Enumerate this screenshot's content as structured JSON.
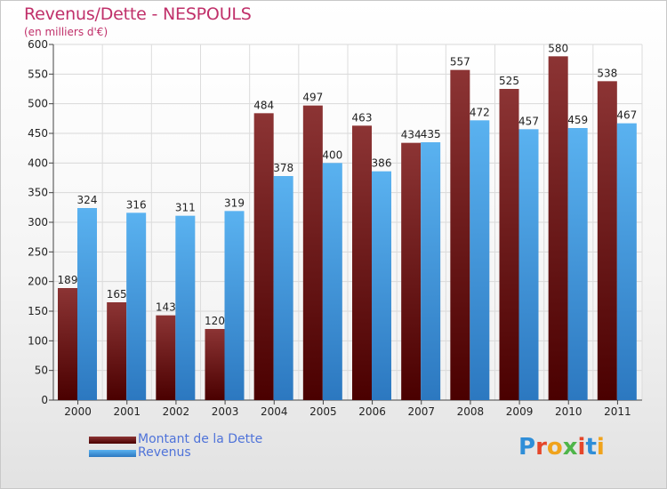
{
  "title": "Revenus/Dette - NESPOULS",
  "subtitle": "(en milliers d'€)",
  "logo": {
    "text": "Proxiti",
    "colors": [
      "#2f8ed8",
      "#e5462a",
      "#f0a31c",
      "#4fb54a",
      "#e5462a",
      "#2f8ed8",
      "#f0a31c"
    ]
  },
  "chart_data": {
    "type": "bar",
    "title": "Revenus/Dette - NESPOULS",
    "subtitle": "(en milliers d'€)",
    "xlabel": "",
    "ylabel": "",
    "ylim": [
      0,
      600
    ],
    "yticks": [
      0,
      50,
      100,
      150,
      200,
      250,
      300,
      350,
      400,
      450,
      500,
      550,
      600
    ],
    "grid": true,
    "legend_position": "bottom-left",
    "categories": [
      "2000",
      "2001",
      "2002",
      "2003",
      "2004",
      "2005",
      "2006",
      "2007",
      "2008",
      "2009",
      "2010",
      "2011"
    ],
    "series": [
      {
        "name": "Montant de la Dette",
        "color": "#7a1f1f",
        "values": [
          189,
          165,
          143,
          120,
          484,
          497,
          463,
          434,
          557,
          525,
          580,
          538
        ]
      },
      {
        "name": "Revenus",
        "color": "#4aa3e6",
        "values": [
          324,
          316,
          311,
          319,
          378,
          400,
          386,
          435,
          472,
          457,
          459,
          467
        ]
      }
    ]
  }
}
